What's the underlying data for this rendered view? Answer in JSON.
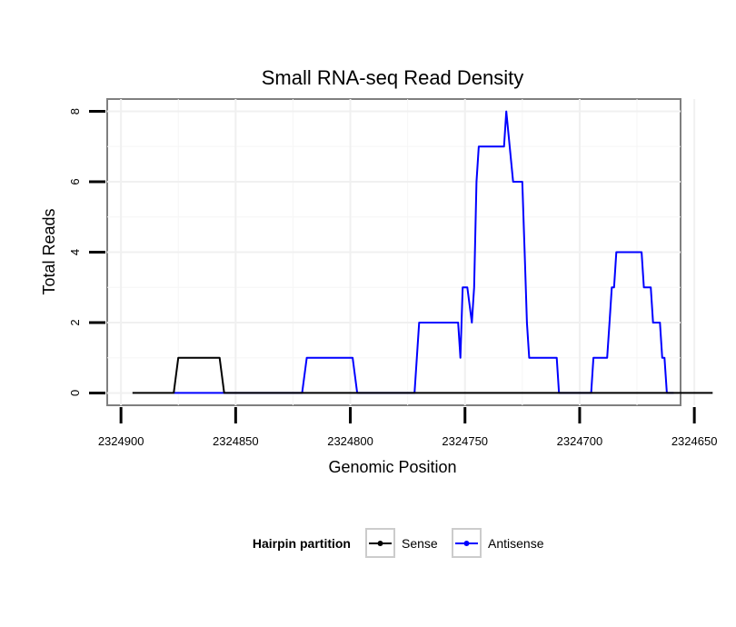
{
  "chart_data": {
    "type": "line",
    "title": "Small RNA-seq Read Density",
    "xlabel": "Genomic Position",
    "ylabel": "Total Reads",
    "xlim": [
      2324906,
      2324656
    ],
    "ylim": [
      -0.35,
      8.35
    ],
    "x_reversed": true,
    "x_ticks": [
      2324900,
      2324850,
      2324800,
      2324750,
      2324700,
      2324650
    ],
    "x_tick_labels": [
      "2324900",
      "2324850",
      "2324800",
      "2324750",
      "2324700",
      "2324650"
    ],
    "y_ticks": [
      0,
      2,
      4,
      6,
      8
    ],
    "y_tick_labels": [
      "0",
      "2",
      "4",
      "6",
      "8"
    ],
    "grid": true,
    "legend": {
      "title": "Hairpin partition",
      "position": "bottom",
      "entries": [
        "Sense",
        "Antisense"
      ]
    },
    "series": [
      {
        "name": "Sense",
        "color": "#000000",
        "x": [
          2324895,
          2324877,
          2324875,
          2324857,
          2324855,
          2324642
        ],
        "y": [
          0,
          0,
          1,
          1,
          0,
          0
        ]
      },
      {
        "name": "Antisense",
        "color": "#0000ff",
        "x": [
          2324877,
          2324855,
          2324821,
          2324819,
          2324799,
          2324797,
          2324772,
          2324770,
          2324753,
          2324752,
          2324751,
          2324749,
          2324747,
          2324746,
          2324745,
          2324744,
          2324743,
          2324742,
          2324733,
          2324732,
          2324729,
          2324728,
          2324725,
          2324724,
          2324723,
          2324722,
          2324721,
          2324718,
          2324717,
          2324710,
          2324709,
          2324695,
          2324694,
          2324688,
          2324687,
          2324686,
          2324685,
          2324684,
          2324673,
          2324672,
          2324670,
          2324669,
          2324668,
          2324665,
          2324664,
          2324663,
          2324662,
          2324661,
          2324660,
          2324659
        ],
        "y": [
          0,
          0,
          0,
          1,
          1,
          0,
          0,
          2,
          2,
          1,
          3,
          3,
          2,
          3,
          6,
          7,
          7,
          7,
          7,
          8,
          6,
          6,
          6,
          4,
          2,
          1,
          1,
          1,
          1,
          1,
          0,
          0,
          1,
          1,
          2,
          3,
          3,
          4,
          4,
          3,
          3,
          3,
          2,
          2,
          1,
          1,
          0,
          0,
          0,
          0
        ]
      }
    ]
  }
}
